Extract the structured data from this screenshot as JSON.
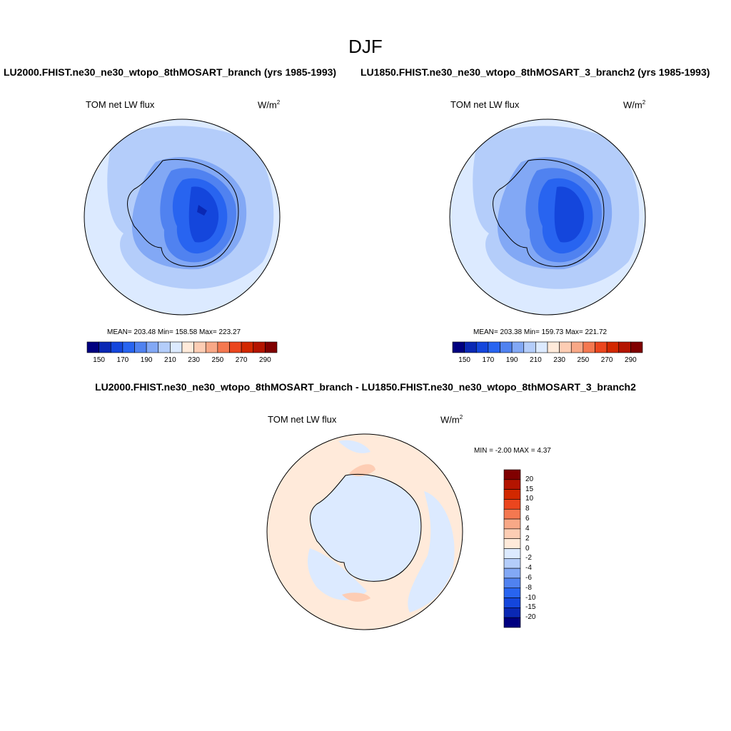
{
  "page": {
    "title": "DJF"
  },
  "panels": [
    {
      "case_title": "LU2000.FHIST.ne30_ne30_wtopo_8thMOSART_branch (yrs 1985-1993)",
      "variable": "TOM net LW flux",
      "units_base": "W/m",
      "units_exp": "2",
      "stats": "MEAN= 203.48  Min= 158.58  Max= 223.27",
      "colorbar_ticks": [
        "150",
        "170",
        "190",
        "210",
        "230",
        "250",
        "270",
        "290"
      ]
    },
    {
      "case_title": "LU1850.FHIST.ne30_ne30_wtopo_8thMOSART_3_branch2 (yrs 1985-1993)",
      "variable": "TOM net LW flux",
      "units_base": "W/m",
      "units_exp": "2",
      "stats": "MEAN= 203.38  Min= 159.73  Max= 221.72",
      "colorbar_ticks": [
        "150",
        "170",
        "190",
        "210",
        "230",
        "250",
        "270",
        "290"
      ]
    },
    {
      "case_title": "LU2000.FHIST.ne30_ne30_wtopo_8thMOSART_branch - LU1850.FHIST.ne30_ne30_wtopo_8thMOSART_3_branch2",
      "variable": "TOM net LW flux",
      "units_base": "W/m",
      "units_exp": "2",
      "stats": "MIN =  -2.00 MAX =   4.37",
      "colorbar_ticks": [
        "20",
        "15",
        "10",
        "8",
        "6",
        "4",
        "2",
        "0",
        "-2",
        "-4",
        "-6",
        "-8",
        "-10",
        "-15",
        "-20"
      ]
    }
  ],
  "colors": {
    "abs_scale": [
      "#000080",
      "#0a28b4",
      "#1446dc",
      "#2864f0",
      "#5082f0",
      "#82a8f5",
      "#b4cdfa",
      "#dceaff",
      "#ffeada",
      "#fdcdb4",
      "#f8a887",
      "#f47850",
      "#eb461e",
      "#d22800",
      "#b41400",
      "#800000"
    ],
    "diff_scale": [
      "#800000",
      "#b41400",
      "#d22800",
      "#eb461e",
      "#f47850",
      "#f8a887",
      "#fdcdb4",
      "#ffeada",
      "#dceaff",
      "#b4cdfa",
      "#82a8f5",
      "#5082f0",
      "#2864f0",
      "#1446dc",
      "#0a28b4",
      "#000080"
    ]
  }
}
